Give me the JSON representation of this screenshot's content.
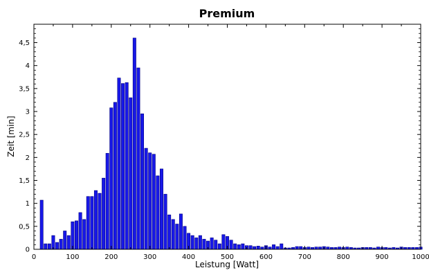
{
  "chart_data": {
    "type": "bar",
    "title": "Premium",
    "xlabel": "Leistung [Watt]",
    "ylabel": "Zeit [min]",
    "xlim": [
      0,
      1000
    ],
    "ylim": [
      0,
      4.9
    ],
    "grid": false,
    "bar_color": "#1818e8",
    "bar_edge": "#000080",
    "x_ticks": [
      {
        "v": 0,
        "label": "0"
      },
      {
        "v": 100,
        "label": "100"
      },
      {
        "v": 200,
        "label": "200"
      },
      {
        "v": 300,
        "label": "300"
      },
      {
        "v": 400,
        "label": "400"
      },
      {
        "v": 500,
        "label": "500"
      },
      {
        "v": 600,
        "label": "600"
      },
      {
        "v": 700,
        "label": "700"
      },
      {
        "v": 800,
        "label": "800"
      },
      {
        "v": 900,
        "label": "900"
      },
      {
        "v": 1000,
        "label": "1000"
      }
    ],
    "y_ticks": [
      {
        "v": 0,
        "label": "0"
      },
      {
        "v": 0.5,
        "label": "0,5"
      },
      {
        "v": 1,
        "label": "1"
      },
      {
        "v": 1.5,
        "label": "1,5"
      },
      {
        "v": 2,
        "label": "2"
      },
      {
        "v": 2.5,
        "label": "2,5"
      },
      {
        "v": 3,
        "label": "3"
      },
      {
        "v": 3.5,
        "label": "3,5"
      },
      {
        "v": 4,
        "label": "4"
      },
      {
        "v": 4.5,
        "label": "4,5"
      }
    ],
    "x": [
      20,
      30,
      40,
      50,
      60,
      70,
      80,
      90,
      100,
      110,
      120,
      130,
      140,
      150,
      160,
      170,
      180,
      190,
      200,
      210,
      220,
      230,
      240,
      250,
      260,
      270,
      280,
      290,
      300,
      310,
      320,
      330,
      340,
      350,
      360,
      370,
      380,
      390,
      400,
      410,
      420,
      430,
      440,
      450,
      460,
      470,
      480,
      490,
      500,
      510,
      520,
      530,
      540,
      550,
      560,
      570,
      580,
      590,
      600,
      610,
      620,
      630,
      640,
      650,
      660,
      670,
      680,
      690,
      700,
      710,
      720,
      730,
      740,
      750,
      760,
      770,
      780,
      790,
      800,
      810,
      820,
      830,
      840,
      850,
      860,
      870,
      880,
      890,
      900,
      910,
      920,
      930,
      940,
      950,
      960,
      970,
      980,
      990,
      1000
    ],
    "values": [
      1.07,
      0.12,
      0.12,
      0.3,
      0.15,
      0.22,
      0.4,
      0.3,
      0.6,
      0.62,
      0.8,
      0.65,
      1.15,
      1.15,
      1.28,
      1.22,
      1.55,
      2.09,
      3.08,
      3.2,
      3.73,
      3.61,
      3.63,
      3.3,
      4.6,
      3.95,
      2.95,
      2.2,
      2.1,
      2.07,
      1.6,
      1.75,
      1.2,
      0.75,
      0.65,
      0.55,
      0.77,
      0.5,
      0.35,
      0.3,
      0.25,
      0.3,
      0.22,
      0.18,
      0.25,
      0.2,
      0.12,
      0.32,
      0.28,
      0.2,
      0.12,
      0.1,
      0.12,
      0.08,
      0.08,
      0.06,
      0.07,
      0.05,
      0.08,
      0.05,
      0.1,
      0.06,
      0.12,
      0.03,
      0.03,
      0.04,
      0.06,
      0.06,
      0.04,
      0.05,
      0.04,
      0.05,
      0.05,
      0.06,
      0.05,
      0.04,
      0.04,
      0.05,
      0.04,
      0.05,
      0.04,
      0.03,
      0.03,
      0.04,
      0.04,
      0.04,
      0.03,
      0.05,
      0.04,
      0.04,
      0.03,
      0.04,
      0.03,
      0.05,
      0.04,
      0.04,
      0.04,
      0.04,
      0.05
    ]
  }
}
